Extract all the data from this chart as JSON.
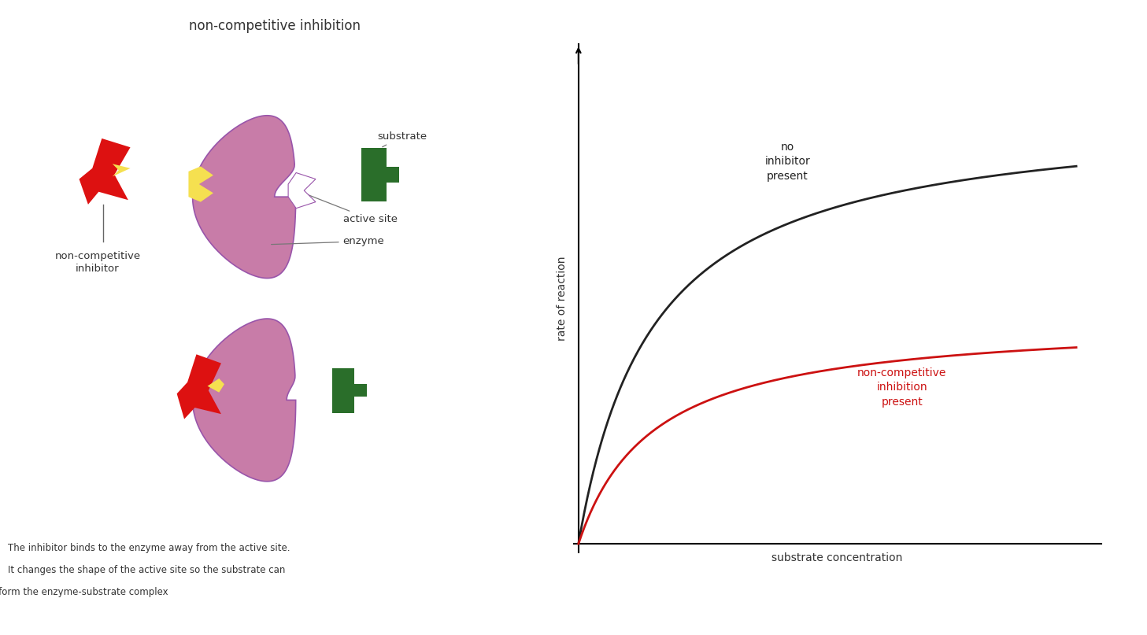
{
  "title": "non-competitive inhibition",
  "title_fontsize": 12,
  "title_color": "#333333",
  "bg_color": "#ffffff",
  "graph_xlabel": "substrate concentration",
  "graph_ylabel": "rate of reaction",
  "curve1_label": "no\ninhibitor\npresent",
  "curve1_color": "#222222",
  "curve1_vmax": 1.0,
  "curve1_km": 1.5,
  "curve2_label": "non-competitive\ninhibition\npresent",
  "curve2_color": "#cc1111",
  "curve2_vmax": 0.52,
  "curve2_km": 1.5,
  "enzyme_color": "#c87ca8",
  "enzyme_edge_color": "#9955aa",
  "inhibitor_color": "#dd1111",
  "substrate_color": "#2a6e2a",
  "allosteric_yellow": "#f5e050",
  "label_active_site": "active site",
  "label_enzyme": "enzyme",
  "label_substrate": "substrate",
  "label_inhibitor": "non-competitive\ninhibitor",
  "label_bottom_line1": "The inhibitor binds to the enzyme away from the active site.",
  "label_bottom_line2": "It changes the shape of the active site so the substrate can",
  "label_bottom_line3": "no longer bind to form the enzyme-substrate complex",
  "annotation_fontsize": 9.5,
  "axis_label_fontsize": 10
}
